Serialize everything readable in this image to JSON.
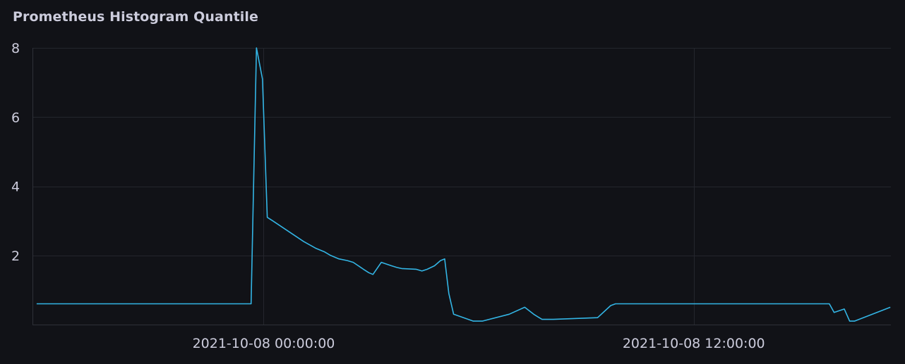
{
  "panel": {
    "title": "Prometheus Histogram Quantile"
  },
  "colors": {
    "background": "#111217",
    "grid": "#24262d",
    "text": "#ccccdc",
    "series": "#33b5e5"
  },
  "chart_data": {
    "type": "line",
    "title": "Prometheus Histogram Quantile",
    "xlabel": "",
    "ylabel": "",
    "ylim": [
      0,
      8
    ],
    "xlim": [
      "2021-10-07 17:33",
      "2021-10-08 17:30"
    ],
    "yticks": [
      "2",
      "4",
      "6",
      "8"
    ],
    "ytick_values": [
      2,
      4,
      6,
      8
    ],
    "xticks": [
      "2021-10-08 00:00:00",
      "2021-10-08 12:00:00"
    ],
    "xtick_values": [
      "2021-10-08 00:00",
      "2021-10-08 12:00"
    ],
    "grid": true,
    "legend": "none",
    "series": [
      {
        "x": [
          "2021-10-07 17:40",
          "2021-10-07 23:39",
          "2021-10-07 23:48",
          "2021-10-07 23:58",
          "2021-10-08 00:06",
          "2021-10-08 00:15",
          "2021-10-08 01:07",
          "2021-10-08 01:28",
          "2021-10-08 01:42",
          "2021-10-08 01:52",
          "2021-10-08 02:06",
          "2021-10-08 02:20",
          "2021-10-08 02:30",
          "2021-10-08 02:47",
          "2021-10-08 02:56",
          "2021-10-08 03:03",
          "2021-10-08 03:17",
          "2021-10-08 03:34",
          "2021-10-08 03:43",
          "2021-10-08 03:51",
          "2021-10-08 04:15",
          "2021-10-08 04:25",
          "2021-10-08 04:34",
          "2021-10-08 04:46",
          "2021-10-08 04:56",
          "2021-10-08 05:03",
          "2021-10-08 05:10",
          "2021-10-08 05:18",
          "2021-10-08 05:51",
          "2021-10-08 06:03",
          "2021-10-08 06:06",
          "2021-10-08 06:51",
          "2021-10-08 07:17",
          "2021-10-08 07:32",
          "2021-10-08 07:46",
          "2021-10-08 08:05",
          "2021-10-08 09:19",
          "2021-10-08 09:41",
          "2021-10-08 09:49",
          "2021-10-08 15:36",
          "2021-10-08 15:47",
          "2021-10-08 15:55",
          "2021-10-08 16:12",
          "2021-10-08 16:21",
          "2021-10-08 16:29",
          "2021-10-08 17:29"
        ],
        "values": [
          0.6,
          0.6,
          8.0,
          7.1,
          3.1,
          3.0,
          2.4,
          2.2,
          2.1,
          2.0,
          1.9,
          1.85,
          1.8,
          1.6,
          1.5,
          1.45,
          1.8,
          1.7,
          1.65,
          1.62,
          1.6,
          1.55,
          1.6,
          1.7,
          1.85,
          1.9,
          0.9,
          0.3,
          0.1,
          0.1,
          0.1,
          0.3,
          0.5,
          0.3,
          0.15,
          0.15,
          0.2,
          0.55,
          0.6,
          0.6,
          0.6,
          0.35,
          0.45,
          0.1,
          0.1,
          0.5
        ]
      }
    ]
  }
}
